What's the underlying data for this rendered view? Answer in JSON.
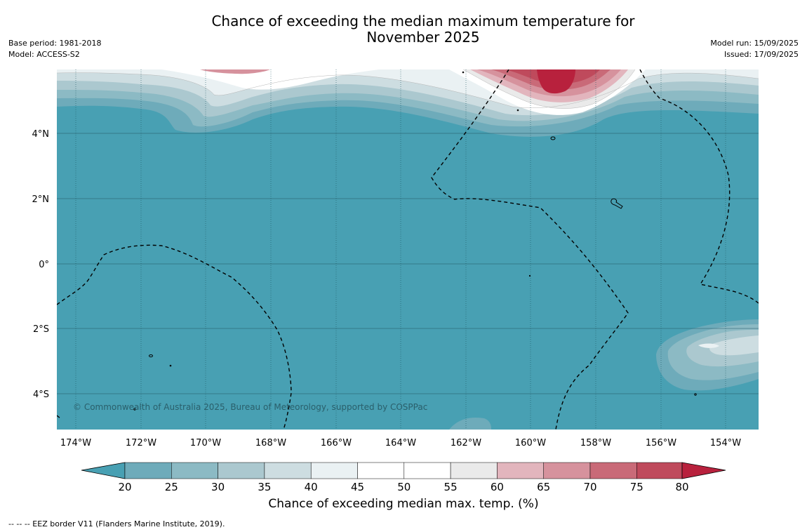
{
  "header": {
    "title_line1": "Chance of exceeding the median maximum temperature for",
    "title_line2": "November 2025",
    "base_period": "Base period: 1981-2018",
    "model": "Model: ACCESS-S2",
    "model_run": "Model run: 15/09/2025",
    "issued": "Issued: 17/09/2025"
  },
  "map": {
    "longitude_labels": [
      "174°W",
      "172°W",
      "170°W",
      "168°W",
      "166°W",
      "164°W",
      "162°W",
      "160°W",
      "158°W",
      "156°W",
      "154°W"
    ],
    "latitude_labels": [
      "4°N",
      "2°N",
      "0°",
      "2°S",
      "4°S"
    ],
    "copyright": "© Commonwealth of Australia 2025, Bureau of Meteorology, supported by COSPPac",
    "colors": {
      "base": "#48a0b3",
      "band_25": "#6eabba",
      "band_30": "#8cbac4",
      "band_35": "#abc8cf",
      "band_40": "#cddde1",
      "band_45": "#eaf1f3",
      "white": "#ffffff",
      "band_60": "#e2b5bd",
      "band_65": "#d6929d",
      "band_70": "#c96a78",
      "band_75": "#bf4a5c",
      "band_80": "#b8213d"
    }
  },
  "colorbar": {
    "ticks": [
      "20",
      "25",
      "30",
      "35",
      "40",
      "45",
      "50",
      "55",
      "60",
      "65",
      "70",
      "75",
      "80"
    ],
    "label": "Chance of exceeding median max. temp. (%)"
  },
  "footer": {
    "eez_note": "--  --  -- EEZ border V11 (Flanders Marine Institute, 2019)."
  }
}
